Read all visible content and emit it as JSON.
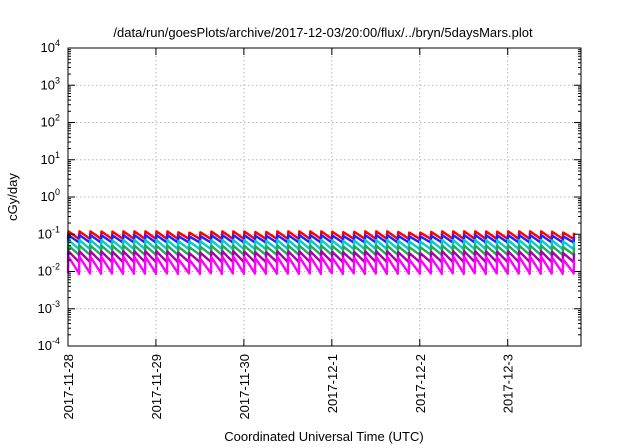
{
  "chart_data": {
    "type": "line",
    "title": "/data/run/goesPlots/archive/2017-12-03/20:00/flux/../bryn/5daysMars.plot",
    "xlabel": "Coordinated Universal Time (UTC)",
    "ylabel": "cGy/day",
    "x_range": [
      "2017-11-28 00:00",
      "2017-12-03 20:00"
    ],
    "x_ticks": [
      "2017-11-28",
      "2017-11-29",
      "2017-11-30",
      "2017-12-1",
      "2017-12-2",
      "2017-12-3"
    ],
    "y_scale": "log",
    "ylim": [
      0.0001,
      10000
    ],
    "y_tick_exponents": [
      "-4",
      "-3",
      "-2",
      "-1",
      "0",
      "1",
      "2",
      "3",
      "4"
    ],
    "y_tick_base": "10",
    "grid": true,
    "legend": "none",
    "series_pattern": "sawtooth, period about 3 hours",
    "series": [
      {
        "color": "#ff0000",
        "values": [
          0.075,
          0.12
        ],
        "shown_as": "min-max envelope"
      },
      {
        "color": "#2222ff",
        "values": [
          0.06,
          0.095
        ],
        "shown_as": "min-max envelope"
      },
      {
        "color": "#00cccc",
        "values": [
          0.04,
          0.07
        ],
        "shown_as": "min-max envelope"
      },
      {
        "color": "#22aa55",
        "values": [
          0.028,
          0.05
        ],
        "shown_as": "min-max envelope"
      },
      {
        "color": "#aa00aa",
        "values": [
          0.018,
          0.035
        ],
        "shown_as": "min-max envelope"
      },
      {
        "color": "#ff00ff",
        "values": [
          0.009,
          0.025
        ],
        "shown_as": "min-max envelope"
      }
    ]
  }
}
